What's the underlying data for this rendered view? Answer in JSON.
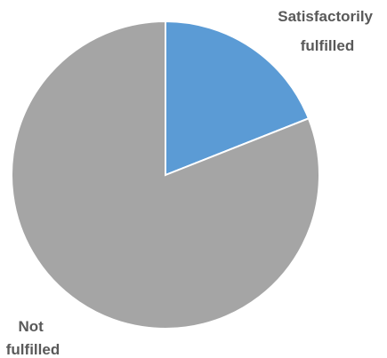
{
  "chart_data": {
    "type": "pie",
    "slices": [
      {
        "label": [
          "Satisfactorily",
          "fulfilled"
        ],
        "value": 19,
        "color": "#5b9bd5"
      },
      {
        "label": [
          "Not",
          "fulfilled"
        ],
        "value": 81,
        "color": "#a5a5a5"
      }
    ],
    "start_angle_deg": 0,
    "direction": "clockwise",
    "legend": "none",
    "data_labels": "category-name"
  }
}
